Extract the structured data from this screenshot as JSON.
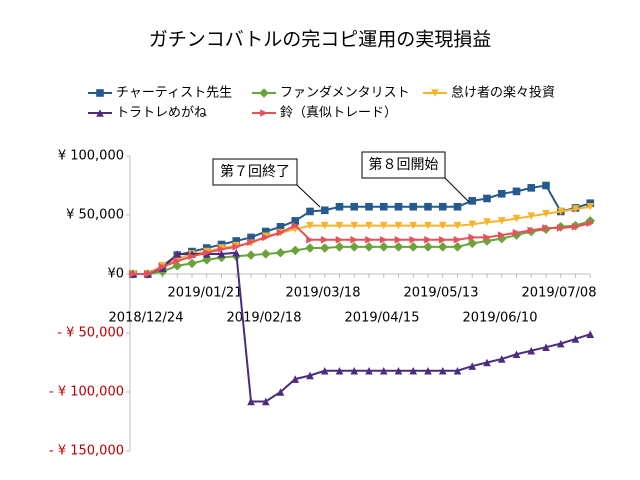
{
  "chart_data": {
    "type": "line",
    "title": "ガチンコバトルの完コピ運用の実現損益",
    "categories": [
      "2018/12/24",
      null,
      null,
      null,
      "2019/01/21",
      null,
      null,
      null,
      "2019/02/18",
      null,
      null,
      null,
      "2019/03/18",
      null,
      null,
      null,
      "2019/04/15",
      null,
      null,
      null,
      "2019/05/13",
      null,
      null,
      null,
      "2019/06/10",
      null,
      null,
      null,
      "2019/07/08",
      null,
      null,
      null
    ],
    "series": [
      {
        "name": "チャーティスト先生",
        "color": "#245a8d",
        "marker": "square",
        "values": [
          0,
          0,
          7000,
          16000,
          19000,
          22000,
          25000,
          28000,
          31000,
          36000,
          40000,
          45000,
          53000,
          54000,
          57000,
          57000,
          57000,
          57000,
          57000,
          57000,
          57000,
          57000,
          57000,
          62000,
          64000,
          68000,
          70000,
          73000,
          75000,
          53000,
          56000,
          60000
        ]
      },
      {
        "name": "ファンダメンタリスト",
        "color": "#6aa33c",
        "marker": "diamond",
        "values": [
          0,
          0,
          2000,
          7000,
          9000,
          12000,
          14000,
          15000,
          16000,
          17000,
          18000,
          20000,
          22000,
          22000,
          23000,
          23000,
          23000,
          23000,
          23000,
          23000,
          23000,
          23000,
          23000,
          26000,
          28000,
          30000,
          33000,
          36000,
          38000,
          40000,
          41000,
          45000
        ]
      },
      {
        "name": "怠け者の楽々投資",
        "color": "#f7b32b",
        "marker": "down",
        "values": [
          0,
          0,
          7000,
          13000,
          17000,
          19000,
          22000,
          24000,
          26000,
          32000,
          35000,
          38000,
          41000,
          41000,
          41000,
          41000,
          41000,
          41000,
          41000,
          41000,
          41000,
          41000,
          41000,
          42000,
          44000,
          45000,
          47000,
          49000,
          51000,
          53000,
          55000,
          57000
        ]
      },
      {
        "name": "トラトレめがね",
        "color": "#4b2c7f",
        "marker": "up",
        "values": [
          0,
          0,
          5000,
          17000,
          17000,
          17000,
          17000,
          18000,
          -108000,
          -108000,
          -100000,
          -89000,
          -86000,
          -82000,
          -82000,
          -82000,
          -82000,
          -82000,
          -82000,
          -82000,
          -82000,
          -82000,
          -82000,
          -78000,
          -75000,
          -72000,
          -68000,
          -65000,
          -62000,
          -59000,
          -55000,
          -51000
        ]
      },
      {
        "name": "鈴（真似トレード）",
        "color": "#e8505b",
        "marker": "right",
        "values": [
          0,
          0,
          6000,
          11000,
          15000,
          18000,
          21000,
          23000,
          27000,
          31000,
          35000,
          41000,
          29000,
          29000,
          29000,
          29000,
          29000,
          29000,
          29000,
          29000,
          29000,
          29000,
          29000,
          31000,
          31000,
          33000,
          35000,
          37000,
          39000,
          39000,
          40000,
          43000
        ]
      }
    ],
    "ylim": [
      -150000,
      100000
    ],
    "yticks": [
      {
        "value": -150000,
        "label": "- ¥ 150,000"
      },
      {
        "value": -100000,
        "label": "- ¥ 100,000"
      },
      {
        "value": -50000,
        "label": "- ¥ 50,000"
      },
      {
        "value": 0,
        "label": "¥0"
      },
      {
        "value": 50000,
        "label": "¥ 50,000"
      },
      {
        "value": 100000,
        "label": "¥ 100,000"
      }
    ],
    "annotations": [
      "第７回終了",
      "第８回開始"
    ]
  }
}
